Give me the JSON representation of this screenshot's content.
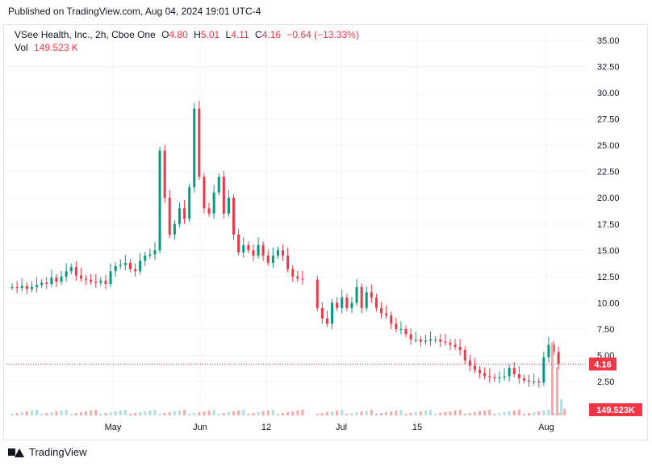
{
  "published": "Published on TradingView.com, Aug 04, 2024 19:01 UTC-4",
  "legend": {
    "symbol": "VSee Health, Inc., 2h, Cboe One",
    "o_label": "O",
    "o": "4.80",
    "h_label": "H",
    "h": "5.01",
    "l_label": "L",
    "l": "4.11",
    "c_label": "C",
    "c": "4.16",
    "change": "−0.64 (−13.33%)",
    "vol_label": "Vol",
    "vol": "149.523 K"
  },
  "footer": {
    "brand": "TradingView"
  },
  "colors": {
    "up": "#089981",
    "down": "#f23645",
    "upVol": "#b2dfdb",
    "downVol": "#f7a9a7",
    "grid": "#f0f3fa"
  },
  "chart_data": {
    "type": "candlestick",
    "title": "VSee Health, Inc., 2h, Cboe One",
    "y_ticks": [
      "35.00",
      "32.50",
      "30.00",
      "27.50",
      "25.00",
      "22.50",
      "20.00",
      "17.50",
      "15.00",
      "12.50",
      "10.00",
      "7.50",
      "5.00",
      "2.50"
    ],
    "x_ticks": [
      "May",
      "Jun",
      "12",
      "Jul",
      "15",
      "Aug"
    ],
    "ylim": [
      0,
      35
    ],
    "last_price": "4.16",
    "last_volume": "149.523K",
    "series": [
      {
        "name": "price",
        "points": [
          [
            1,
            11.5
          ],
          [
            3,
            11.4
          ],
          [
            5,
            11.6
          ],
          [
            7,
            11.3
          ],
          [
            9,
            11.5
          ],
          [
            11,
            11.7
          ],
          [
            13,
            11.9
          ],
          [
            15,
            11.8
          ],
          [
            17,
            12.4
          ],
          [
            19,
            12.0
          ],
          [
            21,
            12.5
          ],
          [
            23,
            13.0
          ],
          [
            25,
            13.4
          ],
          [
            27,
            12.6
          ],
          [
            29,
            12.3
          ],
          [
            31,
            12.2
          ],
          [
            33,
            12.0
          ],
          [
            35,
            11.9
          ],
          [
            37,
            12.1
          ],
          [
            39,
            11.8
          ],
          [
            41,
            13.0
          ],
          [
            43,
            13.5
          ],
          [
            45,
            13.6
          ],
          [
            47,
            13.8
          ],
          [
            49,
            13.2
          ],
          [
            51,
            13.0
          ],
          [
            53,
            14.0
          ],
          [
            55,
            14.5
          ],
          [
            57,
            14.6
          ],
          [
            59,
            15.0
          ],
          [
            61,
            24.5
          ],
          [
            63,
            20.0
          ],
          [
            65,
            16.5
          ],
          [
            67,
            17.5
          ],
          [
            69,
            19.0
          ],
          [
            71,
            18.0
          ],
          [
            73,
            21.0
          ],
          [
            75,
            28.5
          ],
          [
            77,
            22.0
          ],
          [
            79,
            19.0
          ],
          [
            81,
            18.5
          ],
          [
            83,
            20.5
          ],
          [
            85,
            22.0
          ],
          [
            87,
            18.5
          ],
          [
            89,
            20.0
          ],
          [
            91,
            16.5
          ],
          [
            93,
            14.8
          ],
          [
            95,
            15.5
          ],
          [
            97,
            15.0
          ],
          [
            99,
            14.5
          ],
          [
            101,
            15.5
          ],
          [
            103,
            14.5
          ],
          [
            105,
            13.8
          ],
          [
            107,
            14.5
          ],
          [
            109,
            15.0
          ],
          [
            111,
            14.5
          ],
          [
            113,
            13.2
          ],
          [
            115,
            12.5
          ],
          [
            117,
            12.3
          ],
          [
            119,
            12.2
          ],
          [
            125,
            9.5
          ],
          [
            127,
            8.5
          ],
          [
            129,
            8.0
          ],
          [
            131,
            10.0
          ],
          [
            133,
            9.5
          ],
          [
            135,
            10.5
          ],
          [
            137,
            9.5
          ],
          [
            139,
            10.0
          ],
          [
            141,
            11.5
          ],
          [
            143,
            9.5
          ],
          [
            145,
            11.0
          ],
          [
            147,
            10.5
          ],
          [
            149,
            9.5
          ],
          [
            151,
            9.0
          ],
          [
            153,
            8.8
          ],
          [
            155,
            8.0
          ],
          [
            157,
            7.5
          ],
          [
            159,
            7.5
          ],
          [
            161,
            7.0
          ],
          [
            163,
            6.5
          ],
          [
            165,
            6.5
          ],
          [
            167,
            6.3
          ],
          [
            169,
            6.4
          ],
          [
            171,
            6.5
          ],
          [
            173,
            6.5
          ],
          [
            175,
            6.3
          ],
          [
            177,
            6.2
          ],
          [
            179,
            6.0
          ],
          [
            181,
            5.8
          ],
          [
            183,
            5.5
          ],
          [
            185,
            4.5
          ],
          [
            187,
            4.0
          ],
          [
            189,
            3.6
          ],
          [
            191,
            3.3
          ],
          [
            193,
            3.0
          ],
          [
            195,
            2.9
          ],
          [
            197,
            2.8
          ],
          [
            199,
            2.9
          ],
          [
            201,
            3.0
          ],
          [
            203,
            3.8
          ],
          [
            205,
            3.2
          ],
          [
            207,
            2.8
          ],
          [
            209,
            2.6
          ],
          [
            211,
            2.5
          ],
          [
            213,
            2.5
          ],
          [
            215,
            2.4
          ],
          [
            217,
            4.8
          ],
          [
            219,
            6.0
          ],
          [
            221,
            5.3
          ],
          [
            223,
            4.16
          ]
        ]
      }
    ]
  }
}
